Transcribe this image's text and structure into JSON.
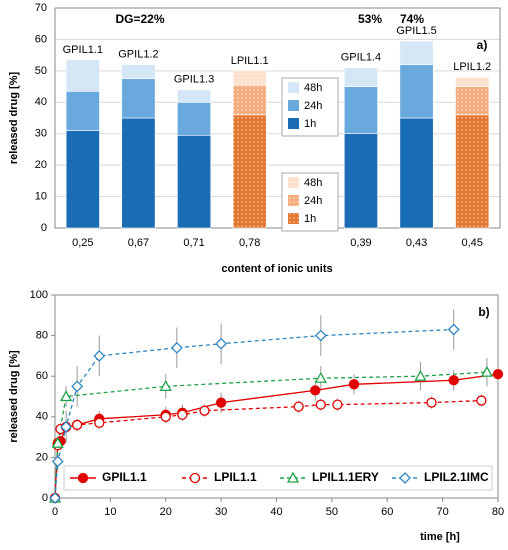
{
  "chart_data": [
    {
      "type": "bar",
      "stacked": true,
      "ylabel": "released drug [%]",
      "xlabel": "content of ionic units",
      "categories": [
        "0,25",
        "0,67",
        "0,71",
        "0,78",
        null,
        "0,39",
        "0,43",
        "0,45"
      ],
      "bar_labels": [
        "GPIL1.1",
        "GPIL1.2",
        "GPIL1.3",
        "LPIL1.1",
        null,
        "GPIL1.4",
        "GPIL1.5",
        "LPIL1.2"
      ],
      "annotations": [
        "DG=22%",
        "53%",
        "74%",
        "a)"
      ],
      "series": [
        {
          "name": "1h",
          "color": "#1a6db5",
          "values": [
            31,
            35,
            29.5,
            null,
            null,
            30,
            35,
            null
          ]
        },
        {
          "name": "24h",
          "color": "#6aa9de",
          "values": [
            12.5,
            12.5,
            10.5,
            null,
            null,
            15,
            17,
            null
          ]
        },
        {
          "name": "48h",
          "color": "#d5e7f7",
          "values": [
            10,
            4.5,
            4,
            null,
            null,
            6,
            7.5,
            null
          ]
        },
        {
          "name": "1h",
          "color": "#e2762f",
          "hatch": "dots",
          "values": [
            null,
            null,
            null,
            36,
            null,
            null,
            null,
            36
          ]
        },
        {
          "name": "24h",
          "color": "#f4ad7c",
          "hatch": "dots",
          "values": [
            null,
            null,
            null,
            9.5,
            null,
            null,
            null,
            9
          ]
        },
        {
          "name": "48h",
          "color": "#fce0cb",
          "hatch": "dots",
          "values": [
            null,
            null,
            null,
            4.5,
            null,
            null,
            null,
            3
          ]
        }
      ],
      "ylim": [
        0,
        70
      ],
      "yticks": [
        0,
        10,
        20,
        30,
        40,
        50,
        60,
        70
      ],
      "grid": true
    },
    {
      "type": "line",
      "ylabel": "released drug [%]",
      "xlabel": "time [h]",
      "annotations": [
        "b)"
      ],
      "xlim": [
        0,
        80
      ],
      "xticks": [
        0,
        10,
        20,
        30,
        40,
        50,
        60,
        70,
        80
      ],
      "ylim": [
        0,
        100
      ],
      "yticks": [
        0,
        20,
        40,
        60,
        80,
        100
      ],
      "grid": false,
      "legend": "bottom",
      "series": [
        {
          "name": "GPIL1.1",
          "color": "#e00000",
          "marker": "circle",
          "filled": true,
          "dashed": false,
          "x": [
            0,
            0.5,
            1,
            2,
            4,
            8,
            20,
            23,
            30,
            47,
            54,
            72,
            80
          ],
          "values": [
            0,
            27,
            28,
            35,
            36,
            39,
            41,
            42,
            47,
            53,
            56,
            58,
            61
          ],
          "errors": [
            0,
            2,
            2,
            3,
            3,
            4,
            4,
            4,
            5,
            5,
            5,
            5,
            4
          ]
        },
        {
          "name": "LPIL1.1",
          "color": "#e00000",
          "marker": "circle",
          "filled": false,
          "dashed": true,
          "x": [
            0,
            0.5,
            1,
            2,
            4,
            8,
            20,
            23,
            27,
            44,
            48,
            51,
            68,
            77
          ],
          "values": [
            0,
            26,
            34,
            35,
            36,
            37,
            40,
            41,
            43,
            45,
            46,
            46,
            47,
            48
          ],
          "errors": [
            0,
            2,
            3,
            3,
            3,
            3,
            3,
            3,
            3,
            3,
            3,
            3,
            3,
            3
          ]
        },
        {
          "name": "LPIL1.1ERY",
          "color": "#1ea34a",
          "marker": "triangle",
          "filled": false,
          "dashed": true,
          "x": [
            0,
            0.5,
            2,
            20,
            48,
            66,
            78
          ],
          "values": [
            0,
            27,
            50,
            55,
            59,
            60,
            62
          ],
          "errors": [
            0,
            3,
            5,
            6,
            6,
            7,
            7
          ]
        },
        {
          "name": "LPIL2.1IMC",
          "color": "#2e86c1",
          "marker": "diamond",
          "filled": false,
          "dashed": true,
          "x": [
            0,
            0.5,
            2,
            4,
            8,
            22,
            30,
            48,
            72
          ],
          "values": [
            0,
            18,
            35,
            55,
            70,
            74,
            76,
            80,
            83
          ],
          "errors": [
            0,
            5,
            8,
            10,
            10,
            10,
            10,
            10,
            10
          ]
        }
      ]
    }
  ]
}
